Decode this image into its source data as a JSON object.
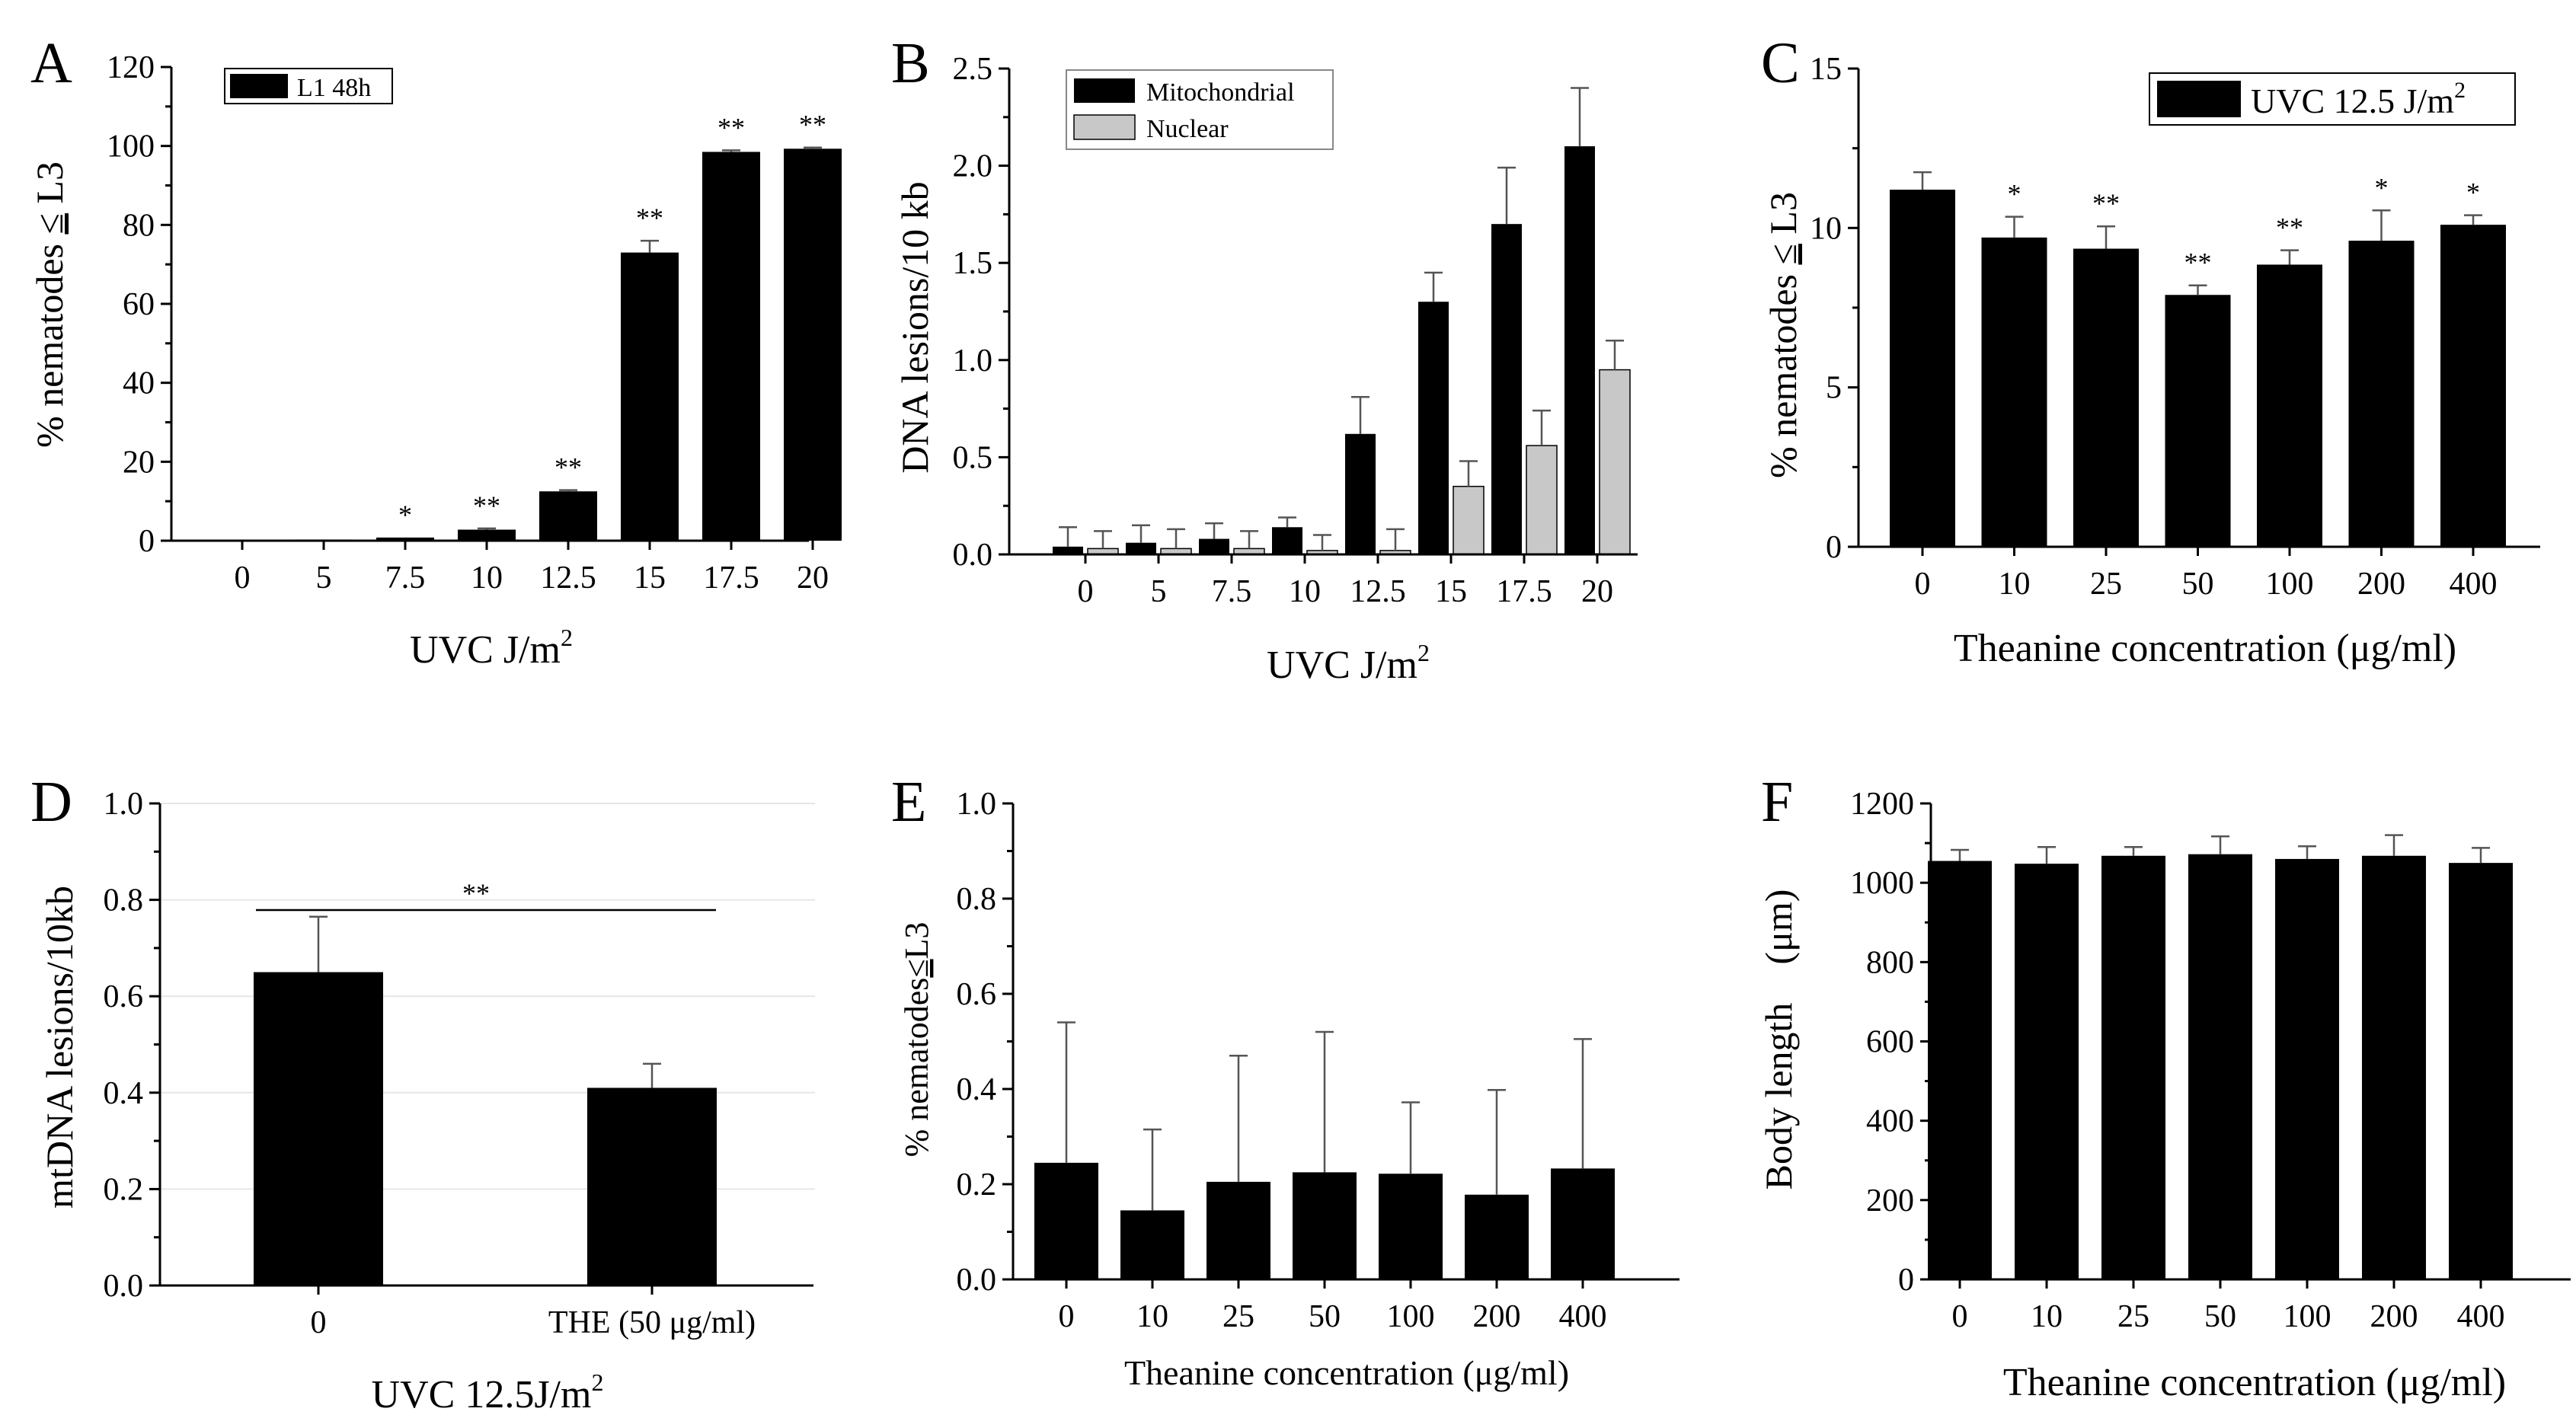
{
  "colors": {
    "bar_primary": "#000000",
    "bar_secondary": "#c8c8c8",
    "error": "#555555"
  },
  "chart_data": [
    {
      "panel": "A",
      "type": "bar",
      "categories": [
        "0",
        "5",
        "7.5",
        "10",
        "12.5",
        "15",
        "17.5",
        "20"
      ],
      "series": [
        {
          "name": "L1 48h",
          "values": [
            0.2,
            0.3,
            0.8,
            2.8,
            12.5,
            73,
            98.5,
            99.3
          ],
          "errors": [
            0,
            0,
            0,
            0.3,
            0.3,
            3.0,
            0.4,
            0.3
          ]
        }
      ],
      "significance": [
        "",
        "",
        "*",
        "**",
        "**",
        "**",
        "**",
        "**"
      ],
      "ylim": [
        0,
        120
      ],
      "yticks": [
        0,
        20,
        40,
        60,
        80,
        100,
        120
      ],
      "ylabel_parts": [
        "% nematodes ",
        "≤",
        " L3"
      ],
      "xlabel": "UVC J/m",
      "xlabel_sup": "2",
      "legend": [
        "L1 48h"
      ]
    },
    {
      "panel": "B",
      "type": "bar",
      "categories": [
        "0",
        "5",
        "7.5",
        "10",
        "12.5",
        "15",
        "17.5",
        "20"
      ],
      "series": [
        {
          "name": "Mitochondrial",
          "values": [
            0.04,
            0.06,
            0.08,
            0.14,
            0.62,
            1.3,
            1.7,
            2.1
          ],
          "errors": [
            0.1,
            0.09,
            0.08,
            0.05,
            0.19,
            0.15,
            0.29,
            0.3
          ]
        },
        {
          "name": "Nuclear",
          "values": [
            0.03,
            0.03,
            0.03,
            0.02,
            0.02,
            0.35,
            0.56,
            0.95
          ],
          "errors": [
            0.09,
            0.1,
            0.09,
            0.08,
            0.11,
            0.13,
            0.18,
            0.15
          ]
        }
      ],
      "ylim": [
        0,
        2.5
      ],
      "yticks": [
        "0.0",
        "0.5",
        "1.0",
        "1.5",
        "2.0",
        "2.5"
      ],
      "ylabel": "DNA lesions/10 kb",
      "xlabel": "UVC J/m",
      "xlabel_sup": "2",
      "legend": [
        "Mitochondrial",
        "Nuclear"
      ]
    },
    {
      "panel": "C",
      "type": "bar",
      "categories": [
        "0",
        "10",
        "25",
        "50",
        "100",
        "200",
        "400"
      ],
      "series": [
        {
          "name": "UVC 12.5 J/m2",
          "values": [
            11.2,
            9.7,
            9.35,
            7.9,
            8.85,
            9.6,
            10.1
          ],
          "errors": [
            0.55,
            0.65,
            0.7,
            0.3,
            0.45,
            0.95,
            0.3
          ]
        }
      ],
      "significance": [
        "",
        "*",
        "**",
        "**",
        "**",
        "*",
        "*"
      ],
      "ylim": [
        0,
        15
      ],
      "yticks": [
        0,
        5,
        10,
        15
      ],
      "ylabel_parts": [
        "% nematodes ",
        "≤",
        " L3"
      ],
      "xlabel": "Theanine concentration (μg/ml)",
      "legend_main": "UVC  12.5 J/m",
      "legend_sup": "2"
    },
    {
      "panel": "D",
      "type": "bar",
      "categories": [
        "0",
        "THE (50 μg/ml)"
      ],
      "series": [
        {
          "name": "mtDNA lesions",
          "values": [
            0.65,
            0.41
          ],
          "errors": [
            0.115,
            0.05
          ]
        }
      ],
      "significance_bracket": "**",
      "ylim": [
        0,
        1.0
      ],
      "yticks": [
        "0.0",
        "0.2",
        "0.4",
        "0.6",
        "0.8",
        "1.0"
      ],
      "ylabel": "mtDNA lesions/10kb",
      "xlabel": "UVC 12.5J/m",
      "xlabel_sup": "2"
    },
    {
      "panel": "E",
      "type": "bar",
      "categories": [
        "0",
        "10",
        "25",
        "50",
        "100",
        "200",
        "400"
      ],
      "series": [
        {
          "name": "% nematodes",
          "values": [
            0.245,
            0.145,
            0.205,
            0.225,
            0.222,
            0.178,
            0.233
          ],
          "errors": [
            0.295,
            0.17,
            0.265,
            0.295,
            0.15,
            0.22,
            0.272
          ]
        }
      ],
      "ylim": [
        0,
        1.0
      ],
      "yticks": [
        "0.0",
        "0.2",
        "0.4",
        "0.6",
        "0.8",
        "1.0"
      ],
      "ylabel_parts": [
        "% nematodes",
        "≤",
        "L3"
      ],
      "xlabel": "Theanine concentration (μg/ml)"
    },
    {
      "panel": "F",
      "type": "bar",
      "categories": [
        "0",
        "10",
        "25",
        "50",
        "100",
        "200",
        "400"
      ],
      "series": [
        {
          "name": "Body length",
          "values": [
            1055,
            1048,
            1068,
            1072,
            1060,
            1068,
            1050
          ],
          "errors": [
            28,
            42,
            22,
            45,
            32,
            52,
            38
          ]
        }
      ],
      "ylim": [
        0,
        1200
      ],
      "yticks": [
        0,
        200,
        400,
        600,
        800,
        1000,
        1200
      ],
      "ylabel": "Body length　(μm)",
      "xlabel": "Theanine concentration (μg/ml)"
    }
  ]
}
